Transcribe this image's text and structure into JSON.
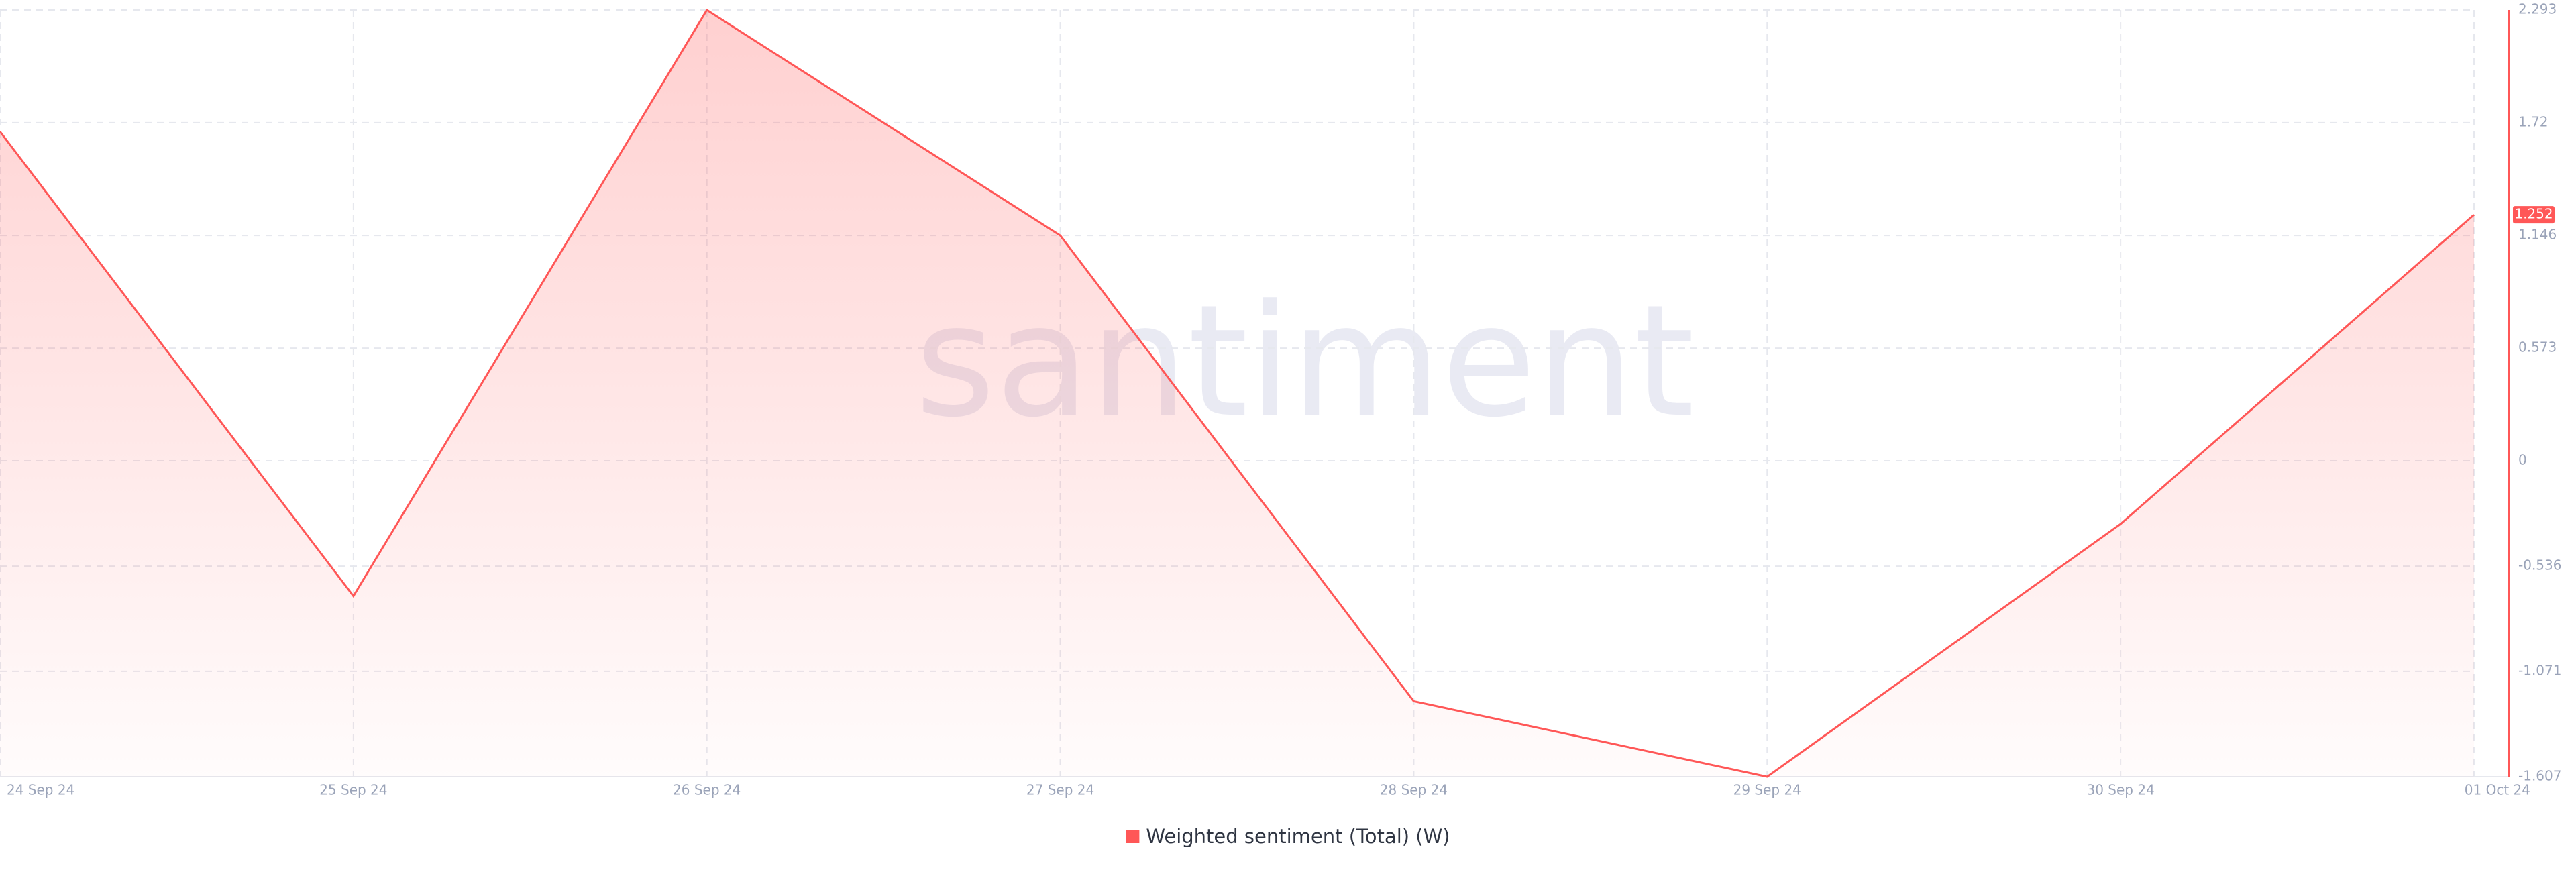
{
  "chart_data": {
    "type": "line",
    "watermark": "santiment",
    "categories": [
      "24 Sep 24",
      "25 Sep 24",
      "26 Sep 24",
      "27 Sep 24",
      "28 Sep 24",
      "29 Sep 24",
      "30 Sep 24",
      "01 Oct 24"
    ],
    "series": [
      {
        "name": "Weighted sentiment (Total) (W)",
        "color": "#ff5757",
        "values": [
          1.675,
          -0.688,
          2.293,
          1.146,
          -1.223,
          -1.607,
          -0.321,
          1.252
        ]
      }
    ],
    "ylim": [
      -1.607,
      2.293
    ],
    "yticks": [
      -1.607,
      -1.071,
      -0.536,
      0,
      0.573,
      1.146,
      1.72,
      2.293
    ],
    "grid": true,
    "legend": "bottom"
  }
}
